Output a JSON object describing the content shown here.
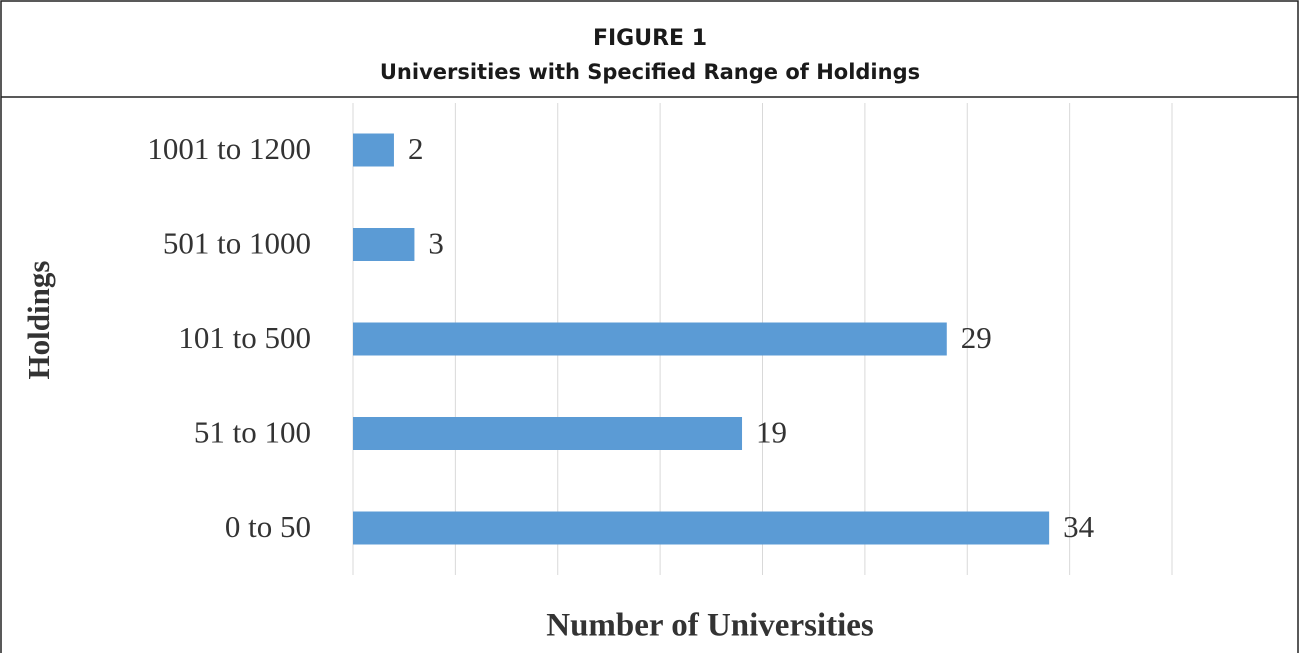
{
  "chart_data": {
    "type": "hbar",
    "title": "FIGURE 1",
    "subtitle": "Universities with Specified Range of Holdings",
    "y_label": "Holdings",
    "x_label": "Number of Universities",
    "categories": [
      "1001 to 1200",
      "501 to 1000",
      "101 to 500",
      "51 to 100",
      "0 to 50"
    ],
    "values": [
      2,
      3,
      29,
      19,
      34
    ],
    "color": "#5b9bd5",
    "xlim": [
      0,
      40
    ],
    "xticks": [
      0,
      5,
      10,
      15,
      20,
      25,
      30,
      35,
      40
    ],
    "grid": true
  }
}
